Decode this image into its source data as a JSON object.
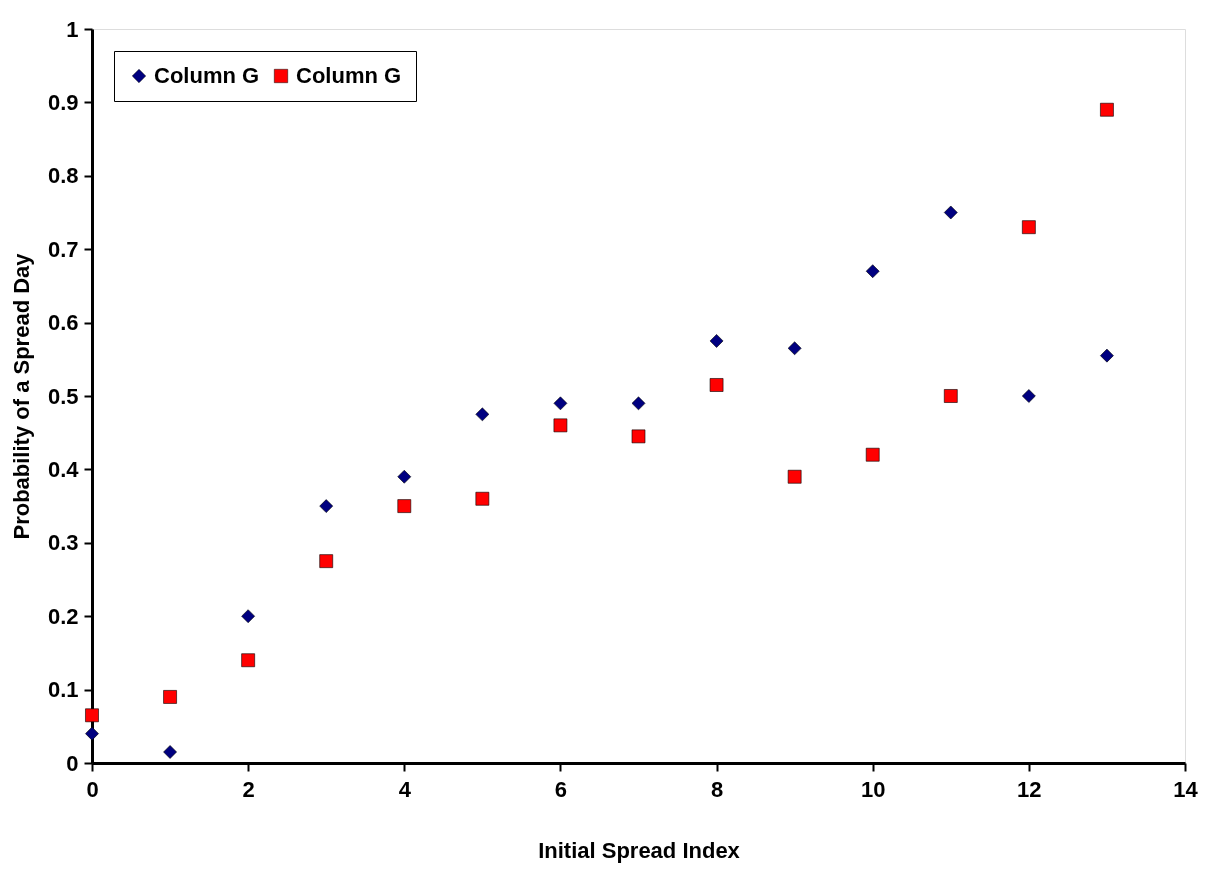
{
  "chart_data": {
    "type": "scatter",
    "xlabel": "Initial Spread Index",
    "ylabel": "Probability of a Spread Day",
    "x": [
      0,
      1,
      2,
      3,
      4,
      5,
      6,
      7,
      8,
      9,
      10,
      11,
      12,
      13
    ],
    "series": [
      {
        "name": "Column G",
        "color": "#000080",
        "marker": "diamond",
        "values": [
          0.04,
          0.015,
          0.2,
          0.35,
          0.39,
          0.475,
          0.49,
          0.49,
          0.575,
          0.565,
          0.67,
          0.75,
          0.5,
          0.555
        ]
      },
      {
        "name": "Column G",
        "color": "#ff0000",
        "marker": "square",
        "values": [
          0.065,
          0.09,
          0.14,
          0.275,
          0.35,
          0.36,
          0.46,
          0.445,
          0.515,
          0.39,
          0.42,
          0.5,
          0.73,
          0.89
        ]
      }
    ],
    "xlim": [
      0,
      14
    ],
    "xticks": [
      0,
      2,
      4,
      6,
      8,
      10,
      12,
      14
    ],
    "ylim": [
      0,
      1
    ],
    "yticks": [
      0,
      0.1,
      0.2,
      0.3,
      0.4,
      0.5,
      0.6,
      0.7,
      0.8,
      0.9,
      1
    ],
    "grid": false,
    "legend": "top left"
  }
}
